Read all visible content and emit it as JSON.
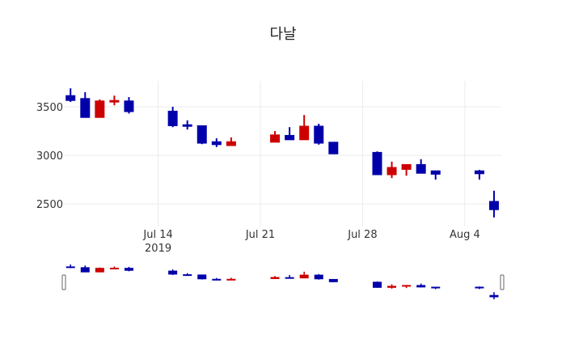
{
  "chart_data": {
    "type": "candlestick",
    "title": "다날",
    "xlabel": "",
    "ylabel": "",
    "ylim": [
      2300,
      3780
    ],
    "grid": true,
    "legend": "none",
    "rangeslider": true,
    "colors": {
      "increasing": "#CC0000",
      "decreasing": "#0000AA",
      "grid": "#ebebeb"
    },
    "y_ticks": [
      2500,
      3000,
      3500
    ],
    "x_ticks": [
      {
        "label": "Jul 14",
        "sub": "2019",
        "date": "2019-07-14"
      },
      {
        "label": "Jul 21",
        "sub": "",
        "date": "2019-07-21"
      },
      {
        "label": "Jul 28",
        "sub": "",
        "date": "2019-07-28"
      },
      {
        "label": "Aug 4",
        "sub": "",
        "date": "2019-08-04"
      }
    ],
    "x_range": [
      "2019-07-07.6",
      "2019-08-06.5"
    ],
    "candles": [
      {
        "date": "2019-07-08",
        "open": 3615,
        "high": 3690,
        "low": 3550,
        "close": 3565
      },
      {
        "date": "2019-07-09",
        "open": 3585,
        "high": 3650,
        "low": 3390,
        "close": 3390
      },
      {
        "date": "2019-07-10",
        "open": 3390,
        "high": 3575,
        "low": 3390,
        "close": 3560
      },
      {
        "date": "2019-07-11",
        "open": 3550,
        "high": 3615,
        "low": 3515,
        "close": 3565
      },
      {
        "date": "2019-07-12",
        "open": 3560,
        "high": 3600,
        "low": 3430,
        "close": 3450
      },
      {
        "date": "2019-07-15",
        "open": 3455,
        "high": 3500,
        "low": 3290,
        "close": 3305
      },
      {
        "date": "2019-07-16",
        "open": 3315,
        "high": 3360,
        "low": 3265,
        "close": 3300
      },
      {
        "date": "2019-07-17",
        "open": 3305,
        "high": 3305,
        "low": 3115,
        "close": 3125
      },
      {
        "date": "2019-07-18",
        "open": 3140,
        "high": 3175,
        "low": 3085,
        "close": 3110
      },
      {
        "date": "2019-07-19",
        "open": 3100,
        "high": 3185,
        "low": 3100,
        "close": 3140
      },
      {
        "date": "2019-07-22",
        "open": 3135,
        "high": 3250,
        "low": 3135,
        "close": 3210
      },
      {
        "date": "2019-07-23",
        "open": 3205,
        "high": 3290,
        "low": 3160,
        "close": 3160
      },
      {
        "date": "2019-07-24",
        "open": 3160,
        "high": 3415,
        "low": 3160,
        "close": 3300
      },
      {
        "date": "2019-07-25",
        "open": 3300,
        "high": 3325,
        "low": 3110,
        "close": 3125
      },
      {
        "date": "2019-07-26",
        "open": 3135,
        "high": 3135,
        "low": 3015,
        "close": 3015
      },
      {
        "date": "2019-07-29",
        "open": 3030,
        "high": 3040,
        "low": 2800,
        "close": 2800
      },
      {
        "date": "2019-07-30",
        "open": 2800,
        "high": 2935,
        "low": 2765,
        "close": 2875
      },
      {
        "date": "2019-07-31",
        "open": 2855,
        "high": 2905,
        "low": 2790,
        "close": 2905
      },
      {
        "date": "2019-08-01",
        "open": 2905,
        "high": 2960,
        "low": 2815,
        "close": 2815
      },
      {
        "date": "2019-08-02",
        "open": 2840,
        "high": 2840,
        "low": 2750,
        "close": 2805
      },
      {
        "date": "2019-08-05",
        "open": 2840,
        "high": 2850,
        "low": 2750,
        "close": 2810
      },
      {
        "date": "2019-08-06",
        "open": 2525,
        "high": 2635,
        "low": 2360,
        "close": 2440
      }
    ]
  }
}
